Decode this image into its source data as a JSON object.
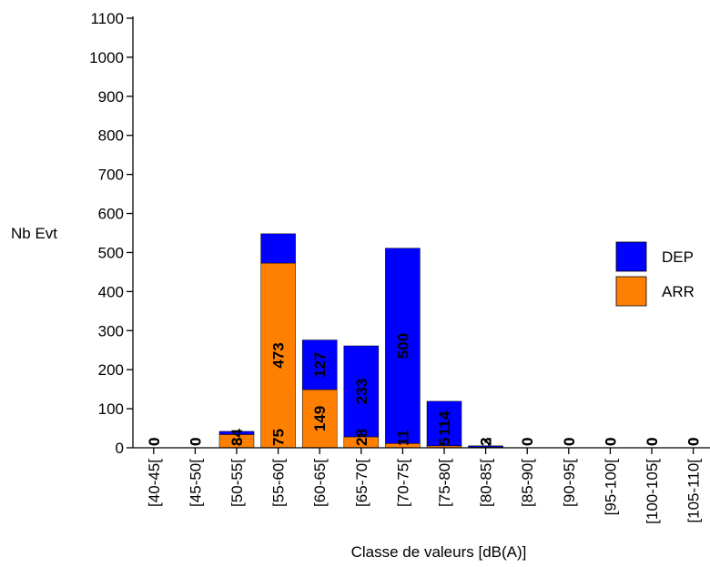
{
  "chart_data": {
    "type": "bar",
    "stacked": true,
    "categories": [
      "[40-45[",
      "[45-50[",
      "[50-55[",
      "[55-60[",
      "[60-65[",
      "[65-70[",
      "[70-75[",
      "[75-80[",
      "[80-85[",
      "[85-90[",
      "[90-95[",
      "[95-100[",
      "[100-105[",
      "[105-110["
    ],
    "series": [
      {
        "name": "ARR",
        "color": "#ff8000",
        "values": [
          0,
          0,
          34,
          473,
          149,
          28,
          11,
          5,
          2,
          0,
          0,
          0,
          0,
          0
        ]
      },
      {
        "name": "DEP",
        "color": "#0000ff",
        "values": [
          0,
          0,
          8,
          75,
          127,
          233,
          500,
          114,
          3,
          0,
          0,
          0,
          0,
          0
        ]
      }
    ],
    "xlabel": "Classe de valeurs [dB(A)]",
    "ylabel": "Nb Evt",
    "ylim": [
      0,
      1100
    ],
    "yticks": [
      0,
      100,
      200,
      300,
      400,
      500,
      600,
      700,
      800,
      900,
      1000,
      1100
    ],
    "grid": false,
    "legend": "right",
    "legend_order": [
      "DEP",
      "ARR"
    ]
  }
}
